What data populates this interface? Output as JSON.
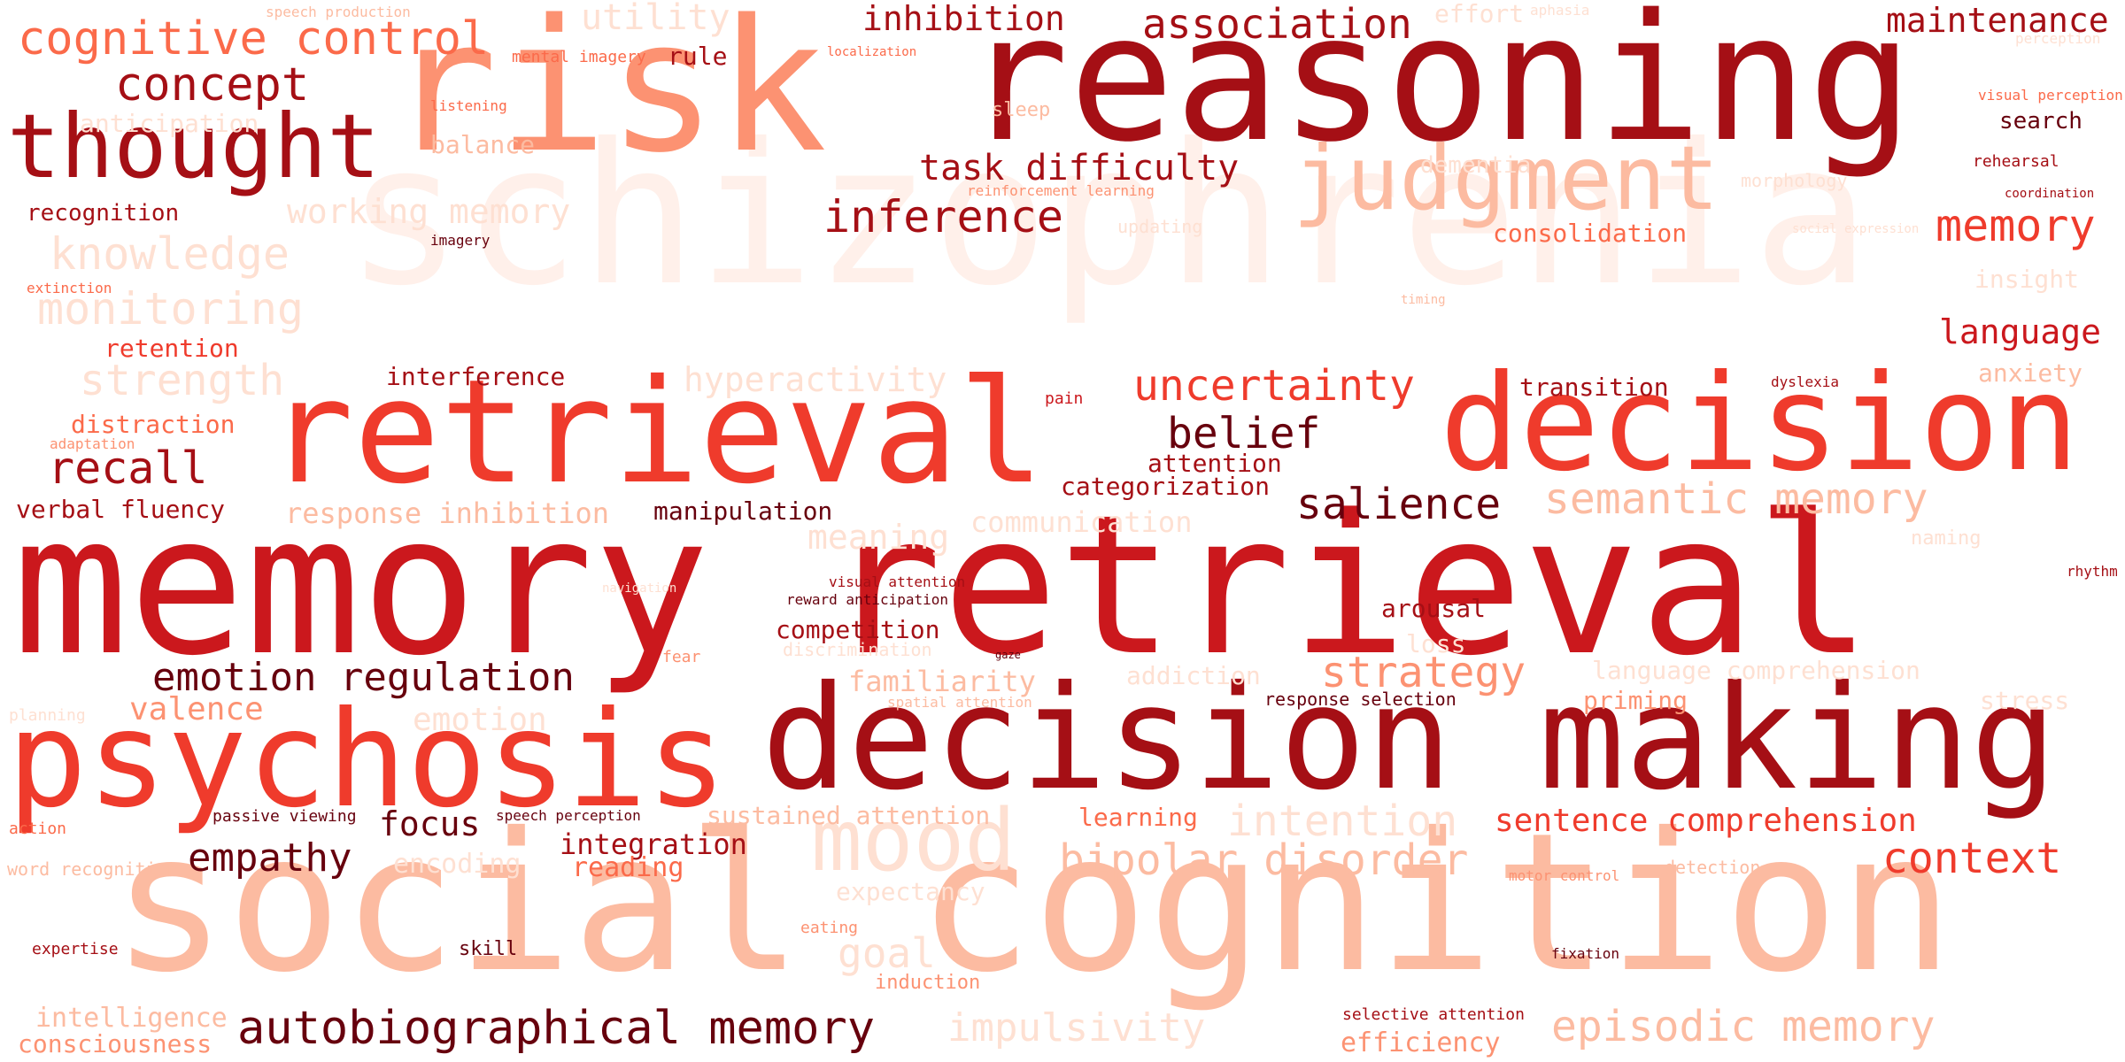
{
  "palette": {
    "c1": "#67000d",
    "c2": "#a50f15",
    "c3": "#cb181d",
    "c4": "#ef3b2c",
    "c5": "#fb6a4a",
    "c6": "#fc9272",
    "c7": "#fcbba1",
    "c8": "#fee0d2",
    "c9": "#fff0ea"
  },
  "words": [
    {
      "text": "schizophrenia",
      "color": "c9"
    },
    {
      "text": "memory retrieval",
      "color": "c3"
    },
    {
      "text": "social cognition",
      "color": "c7"
    },
    {
      "text": "reasoning",
      "color": "c2"
    },
    {
      "text": "risk",
      "color": "c6"
    },
    {
      "text": "decision making",
      "color": "c2"
    },
    {
      "text": "retrieval",
      "color": "c4"
    },
    {
      "text": "decision",
      "color": "c4"
    },
    {
      "text": "psychosis",
      "color": "c4"
    },
    {
      "text": "thought",
      "color": "c2"
    },
    {
      "text": "judgment",
      "color": "c7"
    },
    {
      "text": "mood",
      "color": "c8"
    },
    {
      "text": "cognitive control",
      "color": "c5"
    },
    {
      "text": "concept",
      "color": "c2"
    },
    {
      "text": "utility",
      "color": "c8"
    },
    {
      "text": "inhibition",
      "color": "c2"
    },
    {
      "text": "association",
      "color": "c2"
    },
    {
      "text": "effort",
      "color": "c8"
    },
    {
      "text": "maintenance",
      "color": "c2"
    },
    {
      "text": "speech production",
      "color": "c7"
    },
    {
      "text": "aphasia",
      "color": "c8"
    },
    {
      "text": "perception",
      "color": "c8"
    },
    {
      "text": "mental imagery",
      "color": "c5"
    },
    {
      "text": "rule",
      "color": "c2"
    },
    {
      "text": "localization",
      "color": "c5"
    },
    {
      "text": "listening",
      "color": "c5"
    },
    {
      "text": "anticipation",
      "color": "c8"
    },
    {
      "text": "balance",
      "color": "c7"
    },
    {
      "text": "sleep",
      "color": "c7"
    },
    {
      "text": "visual perception",
      "color": "c5"
    },
    {
      "text": "search",
      "color": "c1"
    },
    {
      "text": "task difficulty",
      "color": "c2"
    },
    {
      "text": "dementia",
      "color": "c8"
    },
    {
      "text": "rehearsal",
      "color": "c2"
    },
    {
      "text": "morphology",
      "color": "c8"
    },
    {
      "text": "reinforcement learning",
      "color": "c6"
    },
    {
      "text": "coordination",
      "color": "c2"
    },
    {
      "text": "recognition",
      "color": "c2"
    },
    {
      "text": "working memory",
      "color": "c8"
    },
    {
      "text": "inference",
      "color": "c2"
    },
    {
      "text": "updating",
      "color": "c8"
    },
    {
      "text": "consolidation",
      "color": "c5"
    },
    {
      "text": "social expression",
      "color": "c8"
    },
    {
      "text": "memory",
      "color": "c4"
    },
    {
      "text": "imagery",
      "color": "c1"
    },
    {
      "text": "knowledge",
      "color": "c8"
    },
    {
      "text": "extinction",
      "color": "c5"
    },
    {
      "text": "insight",
      "color": "c8"
    },
    {
      "text": "monitoring",
      "color": "c8"
    },
    {
      "text": "timing",
      "color": "c7"
    },
    {
      "text": "retention",
      "color": "c4"
    },
    {
      "text": "language",
      "color": "c3"
    },
    {
      "text": "strength",
      "color": "c8"
    },
    {
      "text": "interference",
      "color": "c2"
    },
    {
      "text": "hyperactivity",
      "color": "c8"
    },
    {
      "text": "uncertainty",
      "color": "c4"
    },
    {
      "text": "transition",
      "color": "c2"
    },
    {
      "text": "dyslexia",
      "color": "c2"
    },
    {
      "text": "anxiety",
      "color": "c7"
    },
    {
      "text": "pain",
      "color": "c3"
    },
    {
      "text": "distraction",
      "color": "c5"
    },
    {
      "text": "belief",
      "color": "c1"
    },
    {
      "text": "adaptation",
      "color": "c6"
    },
    {
      "text": "attention",
      "color": "c2"
    },
    {
      "text": "recall",
      "color": "c2"
    },
    {
      "text": "categorization",
      "color": "c2"
    },
    {
      "text": "salience",
      "color": "c1"
    },
    {
      "text": "semantic memory",
      "color": "c7"
    },
    {
      "text": "verbal fluency",
      "color": "c2"
    },
    {
      "text": "response inhibition",
      "color": "c7"
    },
    {
      "text": "manipulation",
      "color": "c1"
    },
    {
      "text": "communication",
      "color": "c8"
    },
    {
      "text": "meaning",
      "color": "c8"
    },
    {
      "text": "naming",
      "color": "c8"
    },
    {
      "text": "visual attention",
      "color": "c2"
    },
    {
      "text": "navigation",
      "color": "c8"
    },
    {
      "text": "reward anticipation",
      "color": "c1"
    },
    {
      "text": "rhythm",
      "color": "c2"
    },
    {
      "text": "arousal",
      "color": "c2"
    },
    {
      "text": "competition",
      "color": "c2"
    },
    {
      "text": "loss",
      "color": "c8"
    },
    {
      "text": "discrimination",
      "color": "c8"
    },
    {
      "text": "fear",
      "color": "c6"
    },
    {
      "text": "gaze",
      "color": "c1"
    },
    {
      "text": "addiction",
      "color": "c8"
    },
    {
      "text": "emotion regulation",
      "color": "c1"
    },
    {
      "text": "strategy",
      "color": "c6"
    },
    {
      "text": "language comprehension",
      "color": "c8"
    },
    {
      "text": "familiarity",
      "color": "c7"
    },
    {
      "text": "valence",
      "color": "c6"
    },
    {
      "text": "spatial attention",
      "color": "c7"
    },
    {
      "text": "response selection",
      "color": "c1"
    },
    {
      "text": "priming",
      "color": "c6"
    },
    {
      "text": "stress",
      "color": "c8"
    },
    {
      "text": "planning",
      "color": "c8"
    },
    {
      "text": "emotion",
      "color": "c8"
    },
    {
      "text": "action",
      "color": "c5"
    },
    {
      "text": "passive viewing",
      "color": "c1"
    },
    {
      "text": "speech perception",
      "color": "c1"
    },
    {
      "text": "sustained attention",
      "color": "c7"
    },
    {
      "text": "learning",
      "color": "c5"
    },
    {
      "text": "intention",
      "color": "c8"
    },
    {
      "text": "sentence comprehension",
      "color": "c4"
    },
    {
      "text": "focus",
      "color": "c1"
    },
    {
      "text": "word recognition",
      "color": "c7"
    },
    {
      "text": "integration",
      "color": "c2"
    },
    {
      "text": "empathy",
      "color": "c1"
    },
    {
      "text": "encoding",
      "color": "c8"
    },
    {
      "text": "reading",
      "color": "c5"
    },
    {
      "text": "bipolar disorder",
      "color": "c7"
    },
    {
      "text": "context",
      "color": "c4"
    },
    {
      "text": "expectancy",
      "color": "c8"
    },
    {
      "text": "motor control",
      "color": "c6"
    },
    {
      "text": "detection",
      "color": "c7"
    },
    {
      "text": "eating",
      "color": "c6"
    },
    {
      "text": "expertise",
      "color": "c2"
    },
    {
      "text": "skill",
      "color": "c1"
    },
    {
      "text": "goal",
      "color": "c8"
    },
    {
      "text": "induction",
      "color": "c6"
    },
    {
      "text": "fixation",
      "color": "c1"
    },
    {
      "text": "intelligence",
      "color": "c7"
    },
    {
      "text": "autobiographical memory",
      "color": "c1"
    },
    {
      "text": "impulsivity",
      "color": "c8"
    },
    {
      "text": "selective attention",
      "color": "c2"
    },
    {
      "text": "episodic memory",
      "color": "c7"
    },
    {
      "text": "consciousness",
      "color": "c6"
    },
    {
      "text": "efficiency",
      "color": "c6"
    }
  ]
}
